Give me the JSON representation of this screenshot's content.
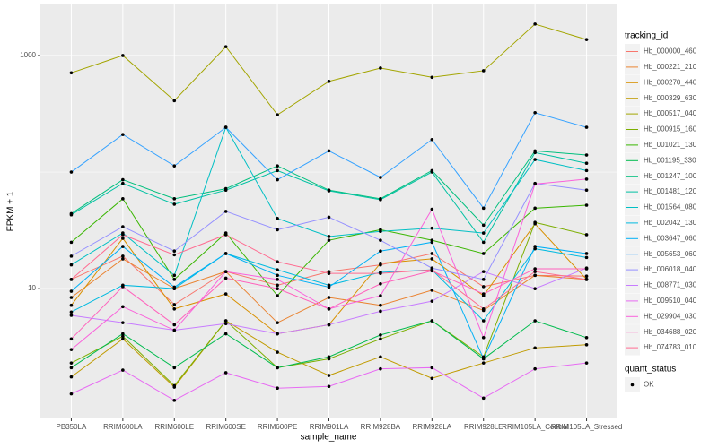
{
  "chart_data": {
    "type": "line",
    "x_label": "sample_name",
    "y_label": "FPKM + 1",
    "y_log": true,
    "grid": true,
    "ylim": [
      0.77,
      2740
    ],
    "yticks": [
      10,
      1000
    ],
    "y_minor_grid": [
      100
    ],
    "legend_title": "tracking_id",
    "legend_position": "right",
    "point_legend_title": "quant_status",
    "point_legend_label": "OK",
    "point_color": "#000000",
    "categories": [
      "PB350LA",
      "RRIM600LA",
      "RRIM600LE",
      "RRIM600SE",
      "RRIM600PE",
      "RRIM901LA",
      "RRIM928BA",
      "RRIM928LA",
      "RRIM928LE",
      "RRIM105LA_Control",
      "RRIM105LA_Stressed"
    ],
    "series": [
      {
        "name": "Hb_000000_460",
        "color": "#F8766D",
        "values": [
          12,
          19,
          7.3,
          14,
          10.7,
          14,
          16,
          20,
          10.4,
          13,
          12.8
        ]
      },
      {
        "name": "Hb_000221_210",
        "color": "#EA8331",
        "values": [
          8.4,
          18,
          10,
          14,
          5.1,
          8.4,
          7.2,
          9.7,
          6.5,
          13,
          12
        ]
      },
      {
        "name": "Hb_000270_440",
        "color": "#D89000",
        "values": [
          7.2,
          27,
          6.7,
          9,
          4.1,
          4.9,
          16.5,
          18,
          8.7,
          36,
          12
        ]
      },
      {
        "name": "Hb_000329_630",
        "color": "#C09B00",
        "values": [
          1.75,
          3.7,
          1.43,
          5.3,
          2.85,
          1.8,
          2.6,
          1.7,
          2.3,
          3.1,
          3.3
        ]
      },
      {
        "name": "Hb_000517_040",
        "color": "#A3A500",
        "values": [
          710,
          1000,
          410,
          1190,
          310,
          600,
          780,
          650,
          740,
          1860,
          1370
        ]
      },
      {
        "name": "Hb_000915_160",
        "color": "#7CAE00",
        "values": [
          2.3,
          3.9,
          1.47,
          5.3,
          2.1,
          2.5,
          3.7,
          5.3,
          2.6,
          37,
          29
        ]
      },
      {
        "name": "Hb_001021_130",
        "color": "#39B600",
        "values": [
          25,
          59,
          12,
          30,
          8.7,
          26,
          32,
          26,
          20,
          49,
          52
        ]
      },
      {
        "name": "Hb_001195_330",
        "color": "#00BB4E",
        "values": [
          2.1,
          4.1,
          2.1,
          4.1,
          2.1,
          2.6,
          4,
          5.3,
          2.5,
          5.3,
          3.8
        ]
      },
      {
        "name": "Hb_001247_100",
        "color": "#00BF7D",
        "values": [
          44,
          86,
          59,
          72,
          113,
          70,
          59,
          103,
          35,
          152,
          140
        ]
      },
      {
        "name": "Hb_001481_120",
        "color": "#00C1A3",
        "values": [
          43,
          80,
          53,
          70,
          103,
          69,
          58,
          100,
          25,
          147,
          119
        ]
      },
      {
        "name": "Hb_001564_080",
        "color": "#00BFC4",
        "values": [
          16,
          30,
          13,
          242,
          40,
          28,
          31,
          33,
          30,
          128,
          103
        ]
      },
      {
        "name": "Hb_002042_130",
        "color": "#00BAE0",
        "values": [
          6.3,
          10.7,
          10,
          20,
          14.5,
          10.7,
          13.8,
          14.5,
          5.3,
          22,
          18.5
        ]
      },
      {
        "name": "Hb_003647_060",
        "color": "#00B0F6",
        "values": [
          9.5,
          23,
          10.3,
          20,
          13,
          10.3,
          21,
          25,
          2.5,
          23,
          20
        ]
      },
      {
        "name": "Hb_005653_060",
        "color": "#35A2FF",
        "values": [
          100,
          210,
          113,
          242,
          86,
          152,
          90,
          190,
          49,
          323,
          242
        ]
      },
      {
        "name": "Hb_006018_040",
        "color": "#9590FF",
        "values": [
          19,
          34,
          21,
          46,
          32,
          41,
          26,
          15,
          12,
          80,
          70
        ]
      },
      {
        "name": "Hb_008771_030",
        "color": "#C77CFF",
        "values": [
          5.9,
          5.1,
          4.4,
          5,
          4.1,
          4.9,
          6.4,
          7.8,
          14,
          10,
          15
        ]
      },
      {
        "name": "Hb_009510_040",
        "color": "#E76BF3",
        "values": [
          1.25,
          2,
          1.1,
          1.9,
          1.4,
          1.45,
          2.05,
          2.1,
          1.15,
          2.05,
          2.3
        ]
      },
      {
        "name": "Hb_029904_030",
        "color": "#FA62DB",
        "values": [
          3,
          7,
          4.4,
          14,
          12,
          6.7,
          8.7,
          48,
          3.8,
          79,
          87
        ]
      },
      {
        "name": "Hb_034688_020",
        "color": "#FF62BC",
        "values": [
          3.7,
          10.4,
          4.9,
          12.3,
          10,
          6.7,
          11,
          14.2,
          9,
          14.8,
          14.8
        ]
      },
      {
        "name": "Hb_074783_010",
        "color": "#FF6C91",
        "values": [
          12,
          29,
          19.5,
          29,
          17,
          13.5,
          13.5,
          14.5,
          6.7,
          14,
          12
        ]
      }
    ]
  }
}
